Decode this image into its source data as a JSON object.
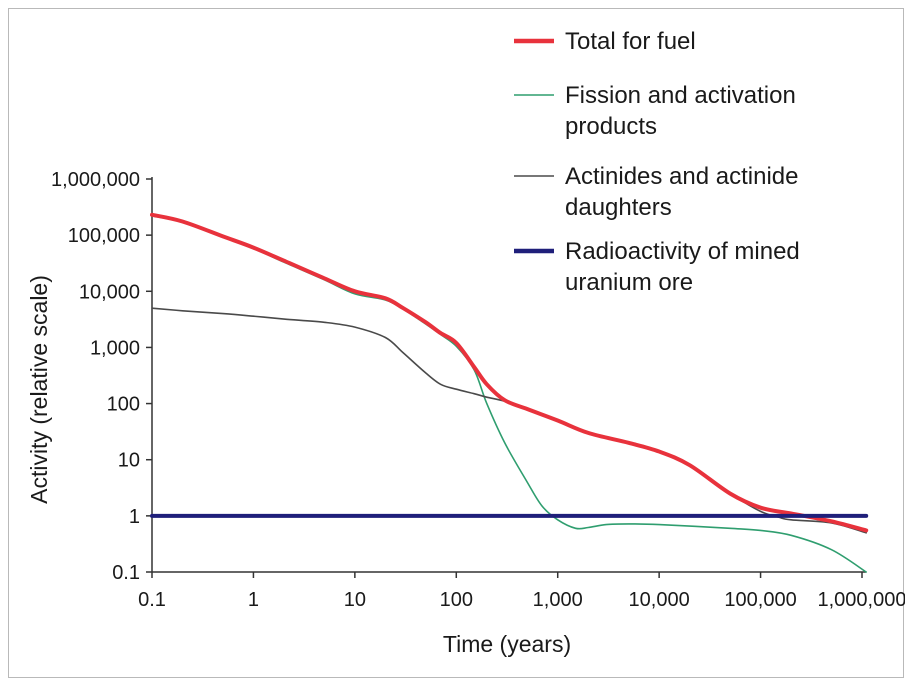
{
  "chart_data": {
    "type": "line",
    "title": "",
    "xlabel": "Time (years)",
    "ylabel": "Activity (relative scale)",
    "xscale": "log",
    "yscale": "log",
    "xlim": [
      0.1,
      1000000
    ],
    "ylim": [
      0.1,
      1000000
    ],
    "x_ticks": [
      {
        "value": 0.1,
        "label": "0.1"
      },
      {
        "value": 1,
        "label": "1"
      },
      {
        "value": 10,
        "label": "10"
      },
      {
        "value": 100,
        "label": "100"
      },
      {
        "value": 1000,
        "label": "1,000"
      },
      {
        "value": 10000,
        "label": "10,000"
      },
      {
        "value": 100000,
        "label": "100,000"
      },
      {
        "value": 1000000,
        "label": "1,000,000"
      }
    ],
    "y_ticks": [
      {
        "value": 1000000,
        "label": "1,000,000"
      },
      {
        "value": 100000,
        "label": "100,000"
      },
      {
        "value": 10000,
        "label": "10,000"
      },
      {
        "value": 1000,
        "label": "1,000"
      },
      {
        "value": 100,
        "label": "100"
      },
      {
        "value": 10,
        "label": "10"
      },
      {
        "value": 1,
        "label": "1"
      },
      {
        "value": 0.1,
        "label": "0.1"
      }
    ],
    "legend_position": "top-right",
    "series": [
      {
        "name": "Total for fuel",
        "color": "#e8323c",
        "stroke_weight": "thick",
        "x": [
          0.1,
          0.2,
          0.5,
          1,
          2,
          5,
          10,
          20,
          30,
          50,
          70,
          100,
          150,
          200,
          300,
          500,
          1000,
          2000,
          5000,
          10000,
          20000,
          50000,
          100000,
          200000,
          500000,
          1100000
        ],
        "y": [
          230000,
          175000,
          95000,
          60000,
          35000,
          17000,
          10000,
          7500,
          5000,
          2800,
          1800,
          1200,
          450,
          220,
          115,
          80,
          50,
          30,
          20,
          14,
          8,
          2.5,
          1.4,
          1.1,
          0.8,
          0.55
        ]
      },
      {
        "name": "Fission and activation products",
        "color": "#2f9e6f",
        "stroke_weight": "thin",
        "x": [
          0.1,
          0.2,
          0.5,
          1,
          2,
          5,
          10,
          20,
          30,
          50,
          70,
          100,
          150,
          200,
          300,
          500,
          700,
          1000,
          1500,
          2000,
          3000,
          5000,
          10000,
          50000,
          100000,
          200000,
          500000,
          1100000
        ],
        "y": [
          220000,
          170000,
          92000,
          58000,
          33000,
          16000,
          9000,
          7000,
          4800,
          2600,
          1700,
          1050,
          400,
          100,
          20,
          4,
          1.5,
          0.85,
          0.6,
          0.62,
          0.7,
          0.72,
          0.7,
          0.6,
          0.55,
          0.45,
          0.25,
          0.1
        ]
      },
      {
        "name": "Actinides and actinide daughters",
        "color": "#4a4a4a",
        "stroke_weight": "thin",
        "x": [
          0.1,
          0.2,
          0.5,
          1,
          2,
          5,
          10,
          20,
          30,
          50,
          70,
          100,
          150,
          200,
          300,
          500,
          1000,
          2000,
          5000,
          10000,
          20000,
          50000,
          100000,
          150000,
          200000,
          500000,
          1100000
        ],
        "y": [
          5000,
          4500,
          4000,
          3600,
          3200,
          2800,
          2300,
          1500,
          800,
          350,
          220,
          180,
          150,
          130,
          110,
          80,
          50,
          30,
          20,
          14,
          8,
          2.5,
          1.2,
          0.95,
          0.85,
          0.75,
          0.5
        ]
      },
      {
        "name": "Radioactivity of mined uranium ore",
        "color": "#1f1f7a",
        "stroke_weight": "thick",
        "x": [
          0.1,
          1100000
        ],
        "y": [
          1,
          1
        ]
      }
    ],
    "legend_entries": [
      {
        "lines": [
          "Total for fuel"
        ]
      },
      {
        "lines": [
          "Fission and activation",
          "products"
        ]
      },
      {
        "lines": [
          "Actinides and actinide",
          "daughters"
        ]
      },
      {
        "lines": [
          "Radioactivity of mined",
          "uranium ore"
        ]
      }
    ]
  }
}
